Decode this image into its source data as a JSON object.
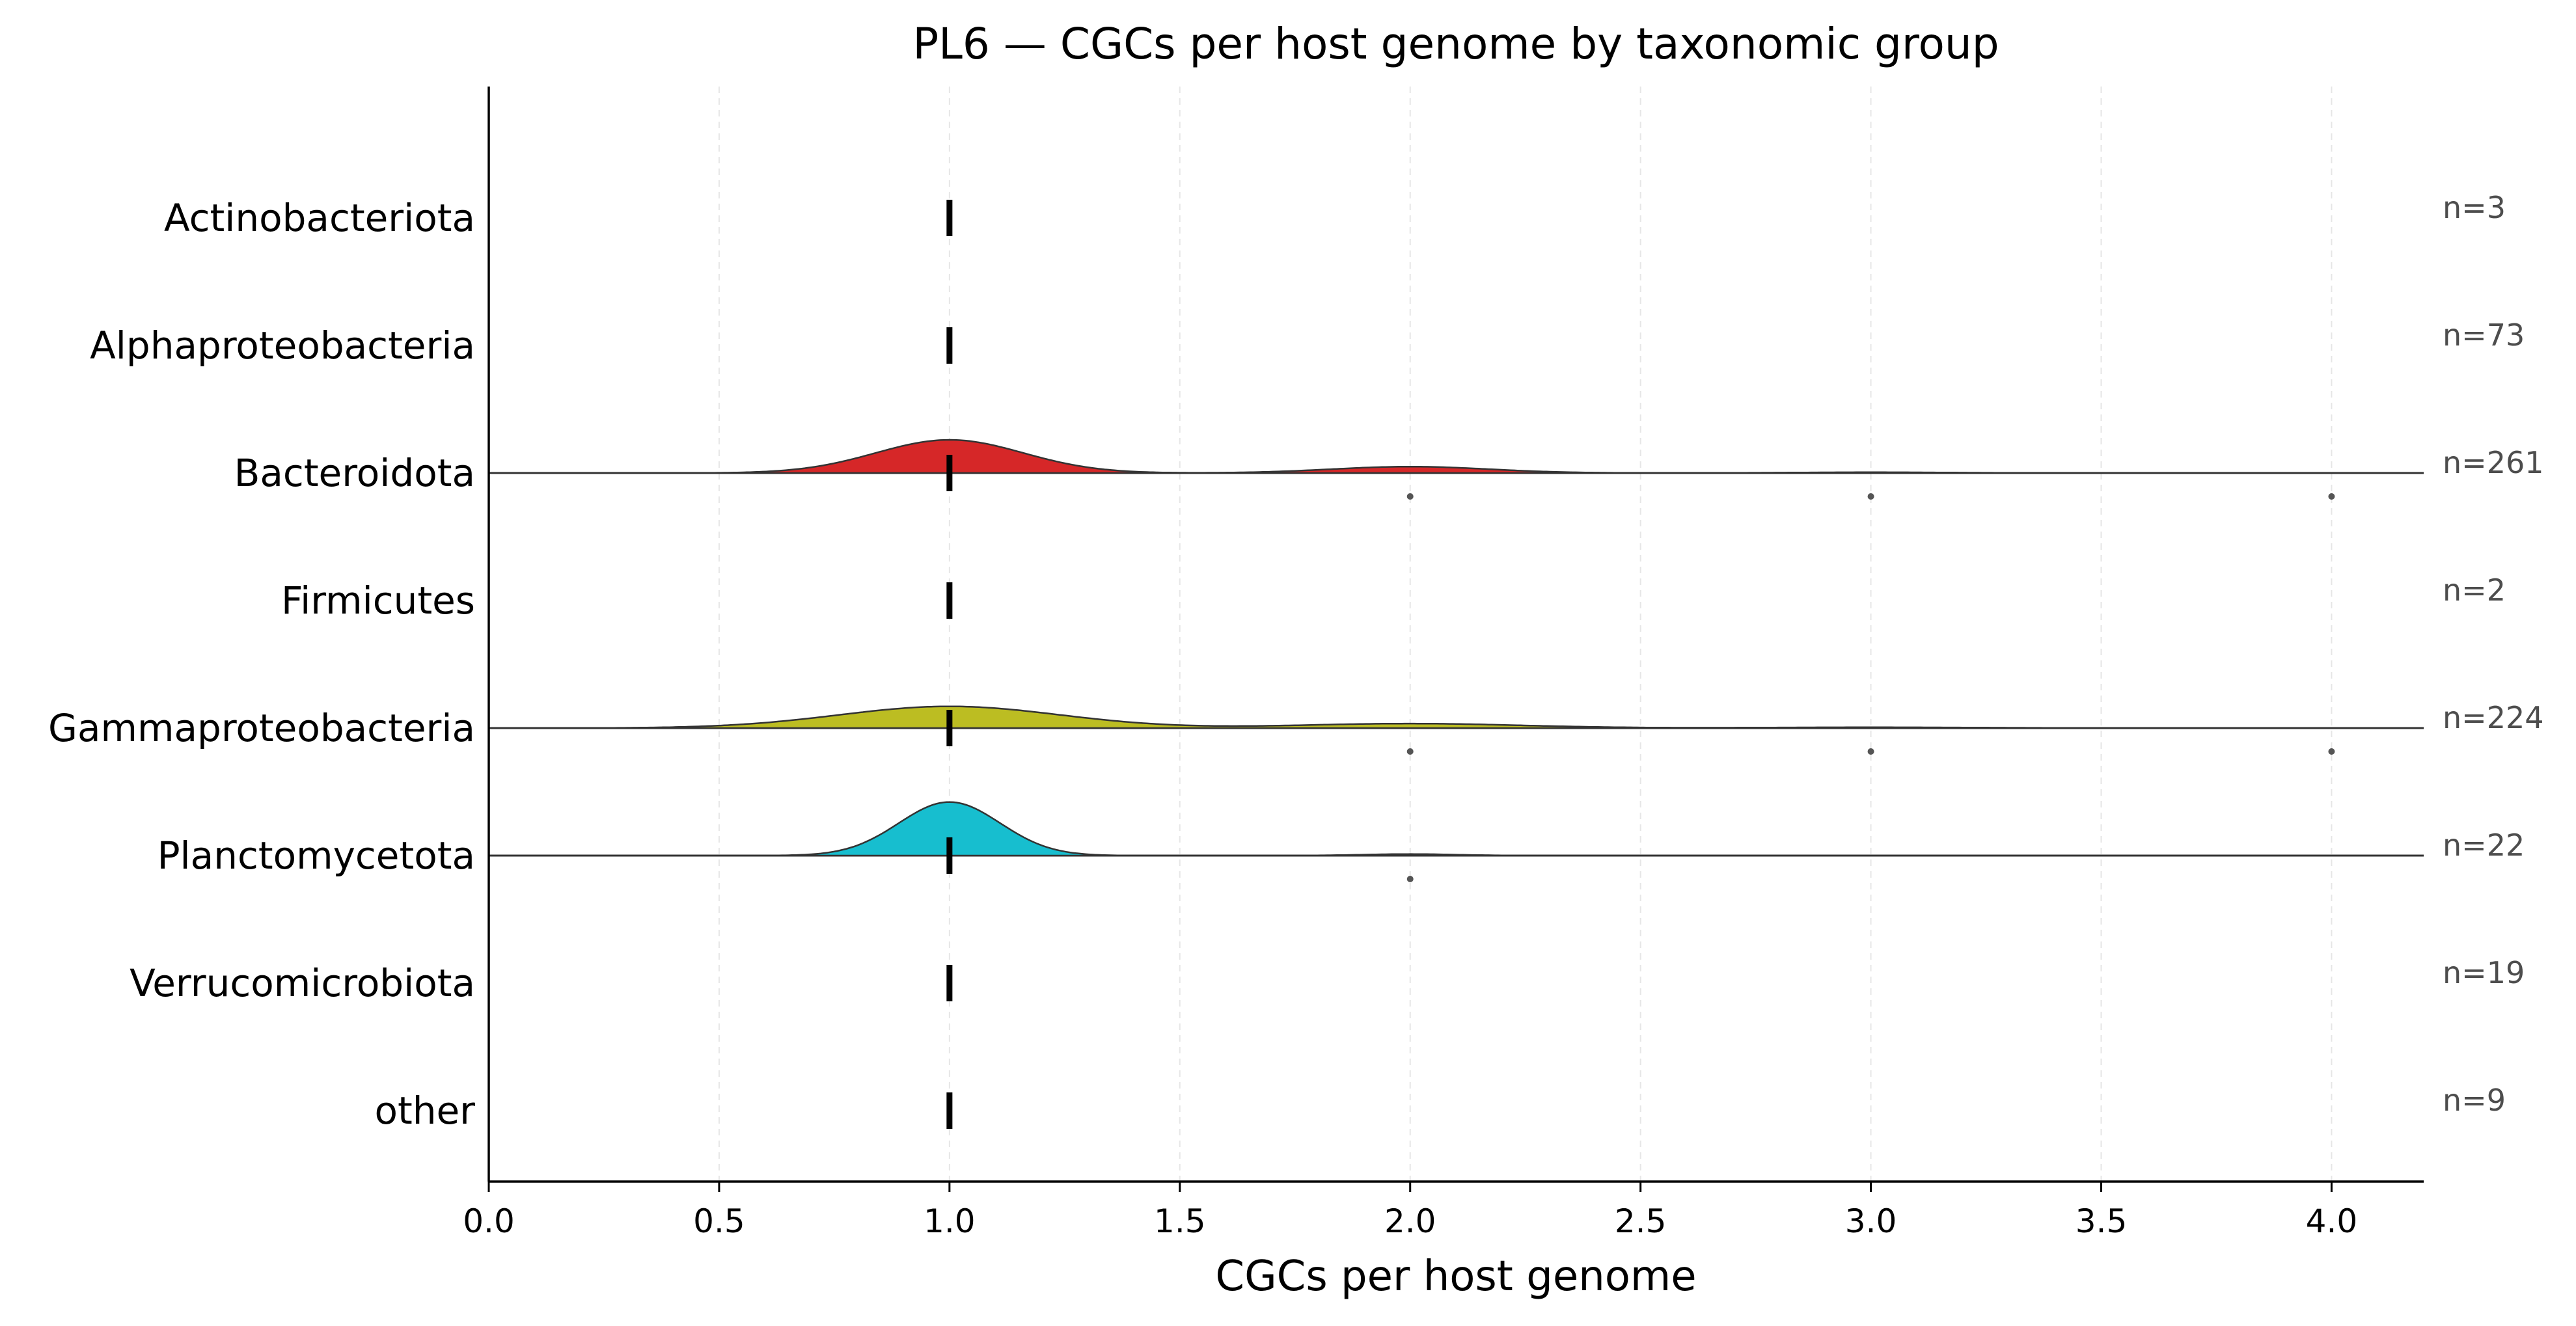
{
  "chart_data": {
    "type": "ridgeline",
    "title": "PL6 — CGCs per host genome by taxonomic group",
    "xlabel": "CGCs per host genome",
    "ylabel": "",
    "xlim": [
      0.0,
      4.2
    ],
    "xticks": [
      "0.0",
      "0.5",
      "1.0",
      "1.5",
      "2.0",
      "2.5",
      "3.0",
      "3.5",
      "4.0"
    ],
    "grid": "vertical dashed",
    "categories": [
      "Actinobacteriota",
      "Alphaproteobacteria",
      "Bacteroidota",
      "Firmicutes",
      "Gammaproteobacteria",
      "Planctomycetota",
      "Verrucomicrobiota",
      "other"
    ],
    "series": [
      {
        "group": "Actinobacteriota",
        "n_label": "n=3",
        "median": 1.0,
        "color": "",
        "density_peaks": [],
        "outliers": []
      },
      {
        "group": "Alphaproteobacteria",
        "n_label": "n=73",
        "median": 1.0,
        "color": "",
        "density_peaks": [],
        "outliers": []
      },
      {
        "group": "Bacteroidota",
        "n_label": "n=261",
        "median": 1.0,
        "color": "#d62728",
        "density_peaks": [
          {
            "x": 1.0,
            "height": 0.26,
            "sd": 0.16
          },
          {
            "x": 2.0,
            "height": 0.05,
            "sd": 0.17
          },
          {
            "x": 3.0,
            "height": 0.006,
            "sd": 0.17
          }
        ],
        "outliers": [
          2.0,
          3.0,
          4.0
        ]
      },
      {
        "group": "Firmicutes",
        "n_label": "n=2",
        "median": 1.0,
        "color": "",
        "density_peaks": [],
        "outliers": []
      },
      {
        "group": "Gammaproteobacteria",
        "n_label": "n=224",
        "median": 1.0,
        "color": "#bcbd22",
        "density_peaks": [
          {
            "x": 1.0,
            "height": 0.17,
            "sd": 0.24
          },
          {
            "x": 2.0,
            "height": 0.035,
            "sd": 0.24
          },
          {
            "x": 3.0,
            "height": 0.006,
            "sd": 0.24
          }
        ],
        "outliers": [
          2.0,
          3.0,
          4.0
        ]
      },
      {
        "group": "Planctomycetota",
        "n_label": "n=22",
        "median": 1.0,
        "color": "#17becf",
        "density_peaks": [
          {
            "x": 1.0,
            "height": 0.42,
            "sd": 0.11
          },
          {
            "x": 2.0,
            "height": 0.012,
            "sd": 0.1
          }
        ],
        "outliers": [
          2.0
        ]
      },
      {
        "group": "Verrucomicrobiota",
        "n_label": "n=19",
        "median": 1.0,
        "color": "",
        "density_peaks": [],
        "outliers": []
      },
      {
        "group": "other",
        "n_label": "n=9",
        "median": 1.0,
        "color": "",
        "density_peaks": [],
        "outliers": []
      }
    ]
  }
}
